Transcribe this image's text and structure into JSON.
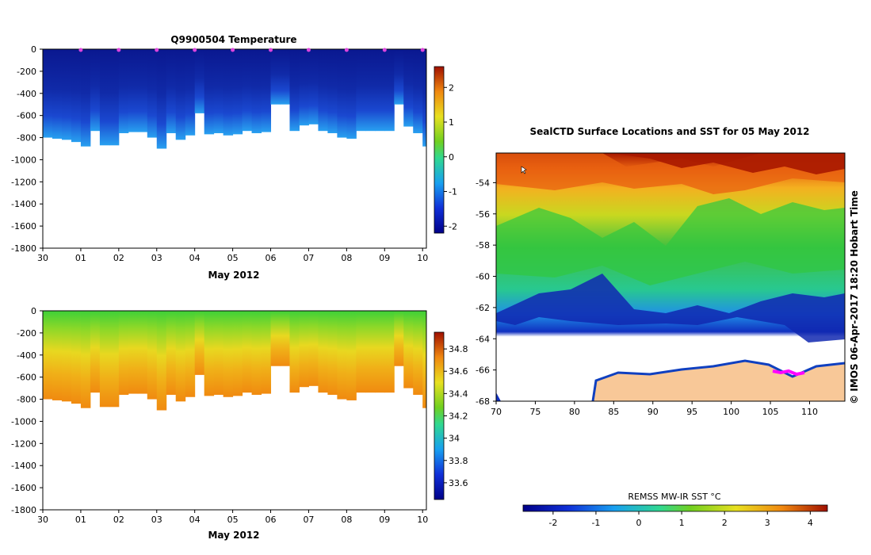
{
  "chart_data": [
    {
      "type": "heatmap",
      "name": "temperature-section",
      "title": "Q9900504  Temperature",
      "xlabel": "May 2012",
      "ylabel": "",
      "x_ticks": [
        "30",
        "01",
        "02",
        "03",
        "04",
        "05",
        "06",
        "07",
        "08",
        "09",
        "10"
      ],
      "x_range": [
        0,
        10.1
      ],
      "y_ticks": [
        0,
        -200,
        -400,
        -600,
        -800,
        -1000,
        -1200,
        -1400,
        -1600,
        -1800
      ],
      "y_range": [
        -1800,
        0
      ],
      "colorbar": {
        "ticks": [
          2,
          1,
          0,
          -1,
          -2
        ],
        "range": [
          -2.2,
          2.6
        ]
      },
      "profile_days": [
        1,
        2,
        3,
        4,
        5,
        6,
        7,
        8,
        9,
        10
      ],
      "profile_marker_color": "#dd44dd",
      "profiles": [
        {
          "t": 0.0,
          "depth": 800
        },
        {
          "t": 0.25,
          "depth": 810
        },
        {
          "t": 0.5,
          "depth": 820
        },
        {
          "t": 0.75,
          "depth": 840
        },
        {
          "t": 1.0,
          "depth": 880
        },
        {
          "t": 1.25,
          "depth": 740
        },
        {
          "t": 1.5,
          "depth": 870
        },
        {
          "t": 1.75,
          "depth": 870
        },
        {
          "t": 2.0,
          "depth": 760
        },
        {
          "t": 2.25,
          "depth": 750
        },
        {
          "t": 2.5,
          "depth": 750
        },
        {
          "t": 2.75,
          "depth": 800
        },
        {
          "t": 3.0,
          "depth": 900
        },
        {
          "t": 3.25,
          "depth": 760
        },
        {
          "t": 3.5,
          "depth": 820
        },
        {
          "t": 3.75,
          "depth": 780
        },
        {
          "t": 4.0,
          "depth": 580
        },
        {
          "t": 4.25,
          "depth": 770
        },
        {
          "t": 4.5,
          "depth": 760
        },
        {
          "t": 4.75,
          "depth": 780
        },
        {
          "t": 5.0,
          "depth": 770
        },
        {
          "t": 5.25,
          "depth": 740
        },
        {
          "t": 5.5,
          "depth": 760
        },
        {
          "t": 5.75,
          "depth": 750
        },
        {
          "t": 6.0,
          "depth": 500
        },
        {
          "t": 6.25,
          "depth": 500
        },
        {
          "t": 6.5,
          "depth": 740
        },
        {
          "t": 6.75,
          "depth": 690
        },
        {
          "t": 7.0,
          "depth": 680
        },
        {
          "t": 7.25,
          "depth": 740
        },
        {
          "t": 7.5,
          "depth": 760
        },
        {
          "t": 7.75,
          "depth": 800
        },
        {
          "t": 8.0,
          "depth": 810
        },
        {
          "t": 8.25,
          "depth": 740
        },
        {
          "t": 8.5,
          "depth": 740
        },
        {
          "t": 8.75,
          "depth": 740
        },
        {
          "t": 9.0,
          "depth": 740
        },
        {
          "t": 9.25,
          "depth": 500
        },
        {
          "t": 9.5,
          "depth": 700
        },
        {
          "t": 9.75,
          "depth": 760
        },
        {
          "t": 10.0,
          "depth": 880
        }
      ]
    },
    {
      "type": "heatmap",
      "name": "salinity-section",
      "title": "",
      "xlabel": "May 2012",
      "x_ticks": [
        "30",
        "01",
        "02",
        "03",
        "04",
        "05",
        "06",
        "07",
        "08",
        "09",
        "10"
      ],
      "x_range": [
        0,
        10.1
      ],
      "y_ticks": [
        0,
        -200,
        -400,
        -600,
        -800,
        -1000,
        -1200,
        -1400,
        -1600,
        -1800
      ],
      "y_range": [
        -1800,
        0
      ],
      "colorbar": {
        "ticks": [
          34.8,
          34.6,
          34.4,
          34.2,
          34,
          33.8,
          33.6
        ],
        "range": [
          33.45,
          34.95
        ]
      }
    },
    {
      "type": "heatmap",
      "name": "sst-map",
      "title": "SealCTD Surface Locations and SST for 05 May 2012",
      "x_ticks": [
        70,
        75,
        80,
        85,
        90,
        95,
        100,
        105,
        110
      ],
      "x_range": [
        70,
        114.5
      ],
      "y_ticks": [
        -54,
        -56,
        -58,
        -60,
        -62,
        -64,
        -66,
        -68
      ],
      "y_range": [
        -68,
        -52.1
      ],
      "colorbar_label": "REMSS MW-IR SST °C",
      "colorbar": {
        "ticks": [
          -2,
          -1,
          0,
          1,
          2,
          3,
          4
        ],
        "range": [
          -2.7,
          4.4
        ]
      },
      "land_color": "#f8c898",
      "track_color": "#ff00ff"
    }
  ],
  "credit": "©  IMOS 06-Apr-2017 18:20 Hobart Time"
}
